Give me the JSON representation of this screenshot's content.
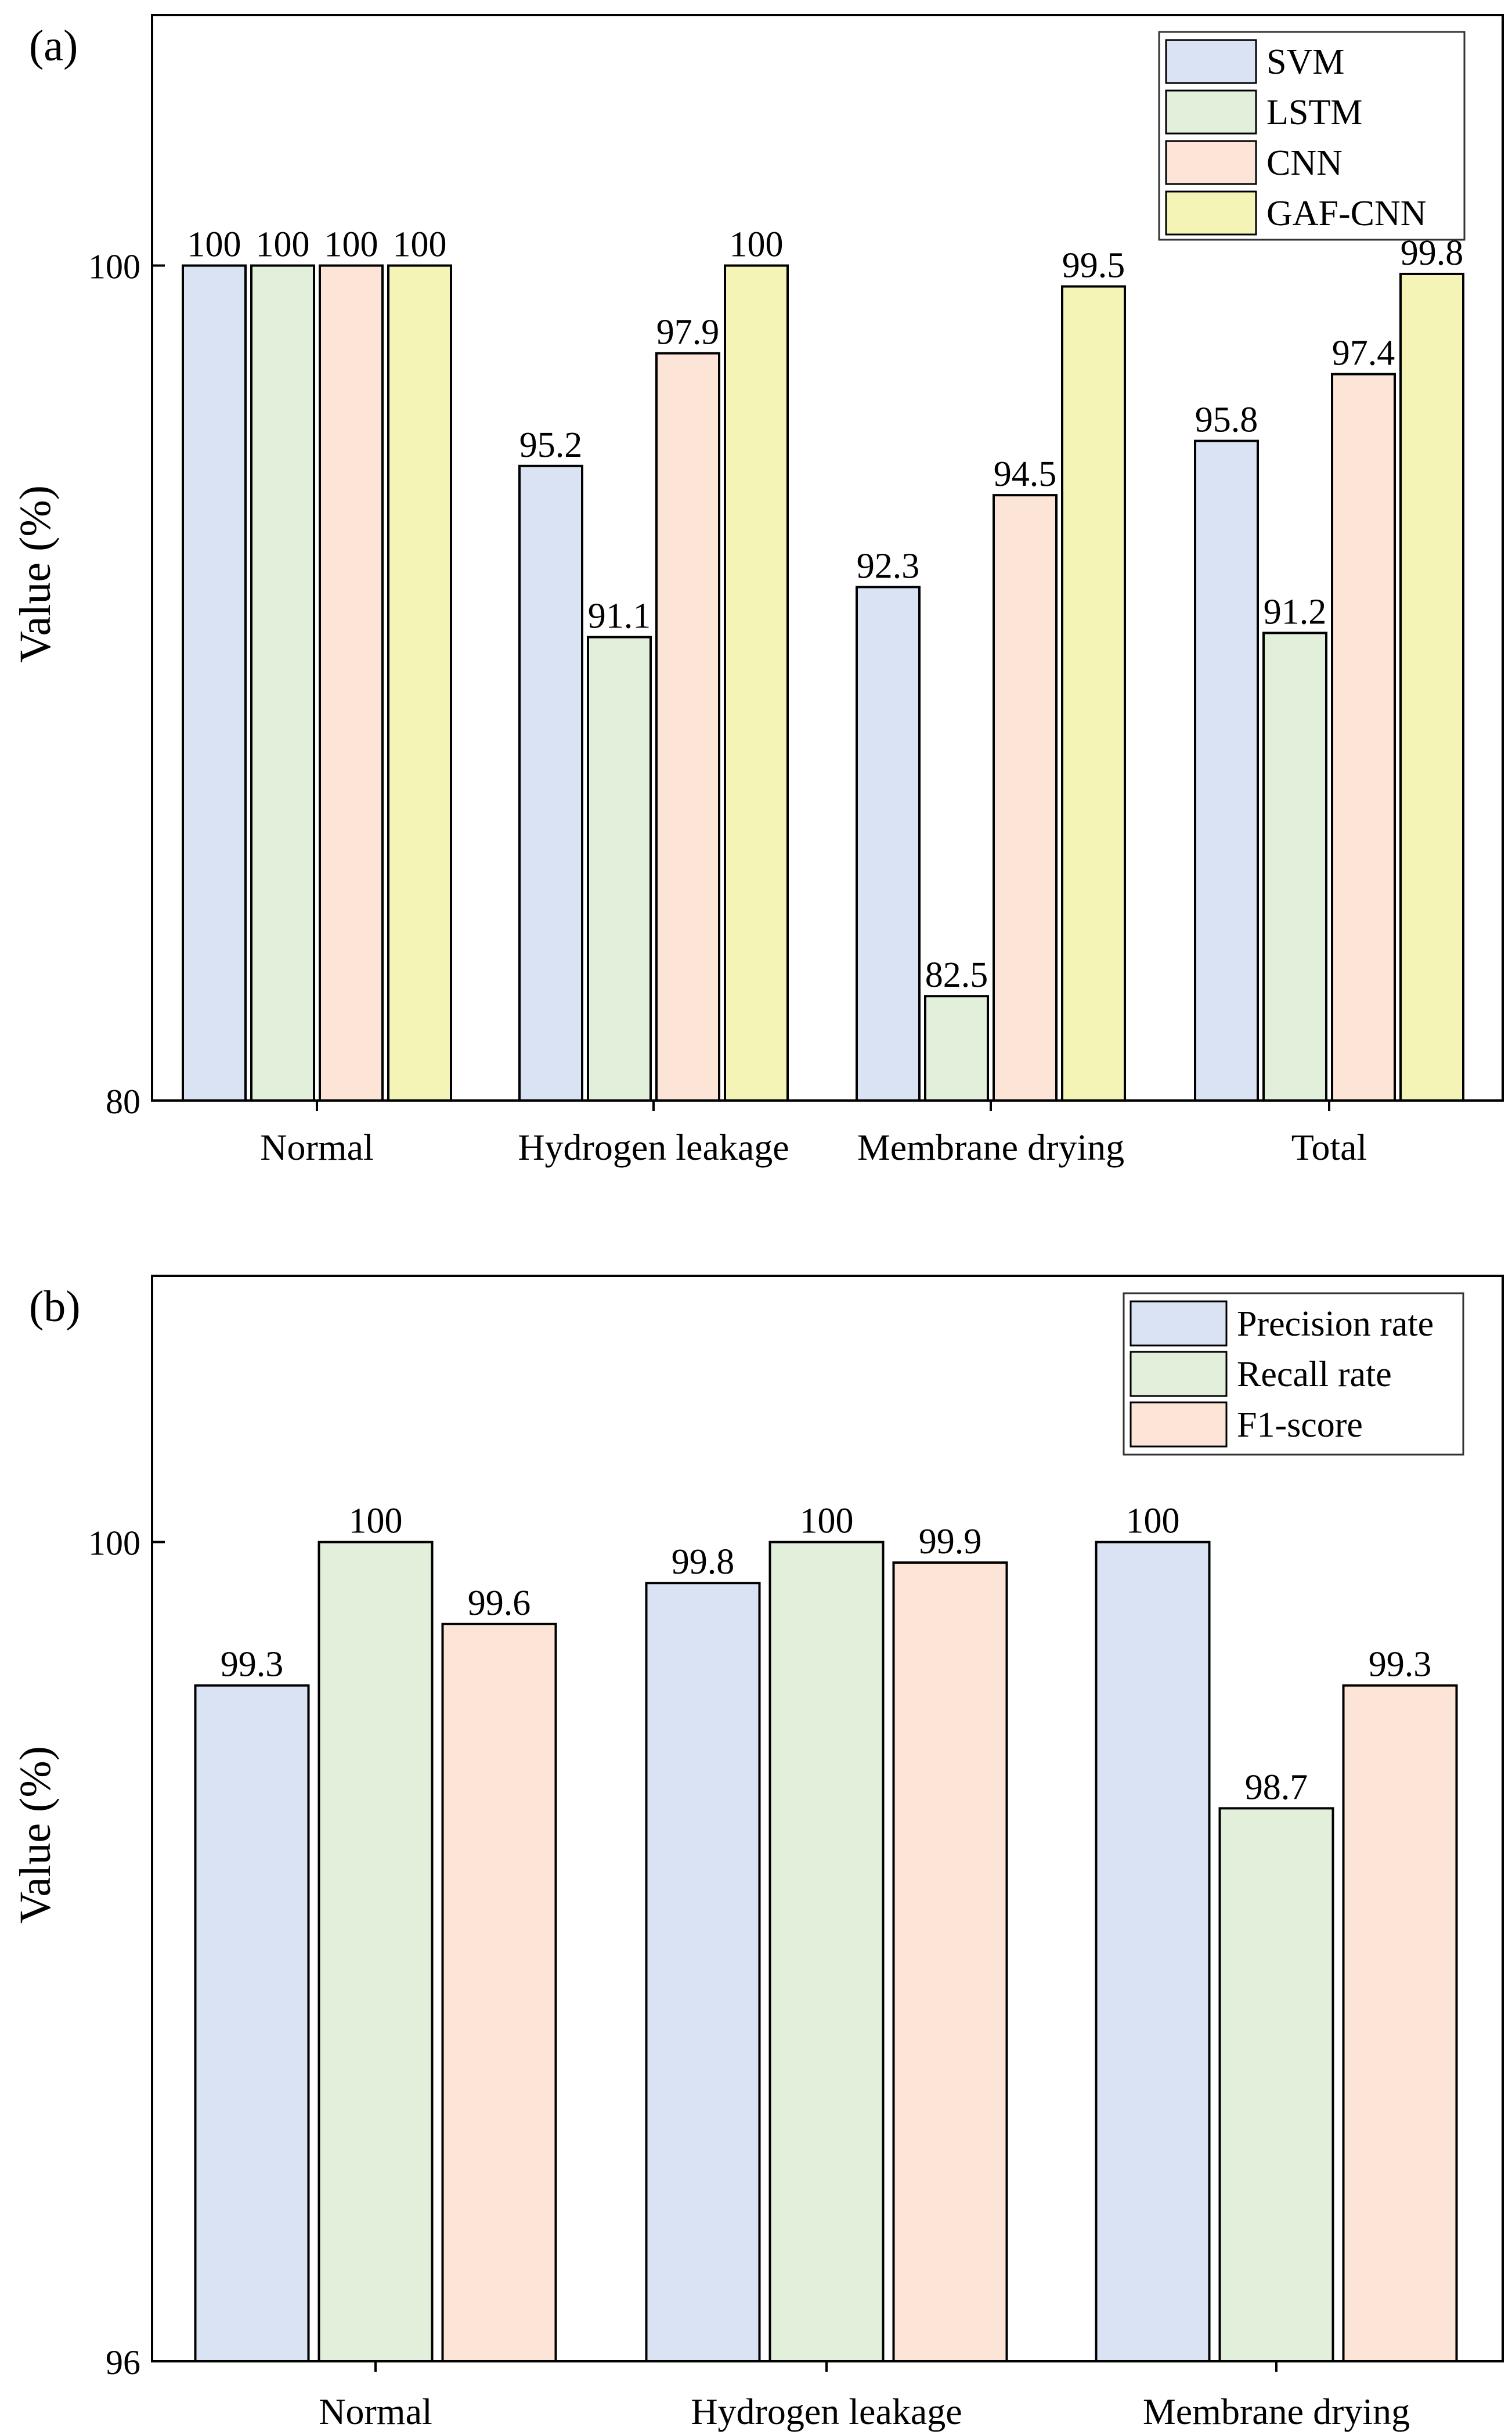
{
  "chart_data": [
    {
      "panel_label": "(a)",
      "type": "bar",
      "categories": [
        "Normal",
        "Hydrogen leakage",
        "Membrane drying",
        "Total"
      ],
      "series": [
        {
          "name": "SVM",
          "values": [
            100,
            95.2,
            92.3,
            95.8
          ],
          "labels": [
            "100",
            "95.2",
            "92.3",
            "95.8"
          ],
          "color": "#dae3f3"
        },
        {
          "name": "LSTM",
          "values": [
            100,
            91.1,
            82.5,
            91.2
          ],
          "labels": [
            "100",
            "91.1",
            "82.5",
            "91.2"
          ],
          "color": "#e2efda"
        },
        {
          "name": "CNN",
          "values": [
            100,
            97.9,
            94.5,
            97.4
          ],
          "labels": [
            "100",
            "97.9",
            "94.5",
            "97.4"
          ],
          "color": "#fce4d6"
        },
        {
          "name": "GAF-CNN",
          "values": [
            100,
            100,
            99.5,
            99.8
          ],
          "labels": [
            "100",
            "100",
            "99.5",
            "99.8"
          ],
          "color": "#f4f4b6"
        }
      ],
      "ylabel": "Value (%)",
      "ylim": [
        80,
        106
      ],
      "yticks": [
        80,
        100
      ],
      "ytick_labels": [
        "80",
        "100"
      ],
      "legend_position": "top-right",
      "grid": false
    },
    {
      "panel_label": "(b)",
      "type": "bar",
      "categories": [
        "Normal",
        "Hydrogen leakage",
        "Membrane drying"
      ],
      "series": [
        {
          "name": "Precision rate",
          "values": [
            99.3,
            99.8,
            100
          ],
          "labels": [
            "99.3",
            "99.8",
            "100"
          ],
          "color": "#dae3f3"
        },
        {
          "name": "Recall rate",
          "values": [
            100,
            100,
            98.7
          ],
          "labels": [
            "100",
            "100",
            "98.7"
          ],
          "color": "#e2efda"
        },
        {
          "name": "F1-score",
          "values": [
            99.6,
            99.9,
            99.3
          ],
          "labels": [
            "99.6",
            "99.9",
            "99.3"
          ],
          "color": "#fce4d6"
        }
      ],
      "ylabel": "Value (%)",
      "ylim": [
        96,
        101.3
      ],
      "yticks": [
        96,
        100
      ],
      "ytick_labels": [
        "96",
        "100"
      ],
      "legend_position": "top-right",
      "grid": false
    }
  ]
}
